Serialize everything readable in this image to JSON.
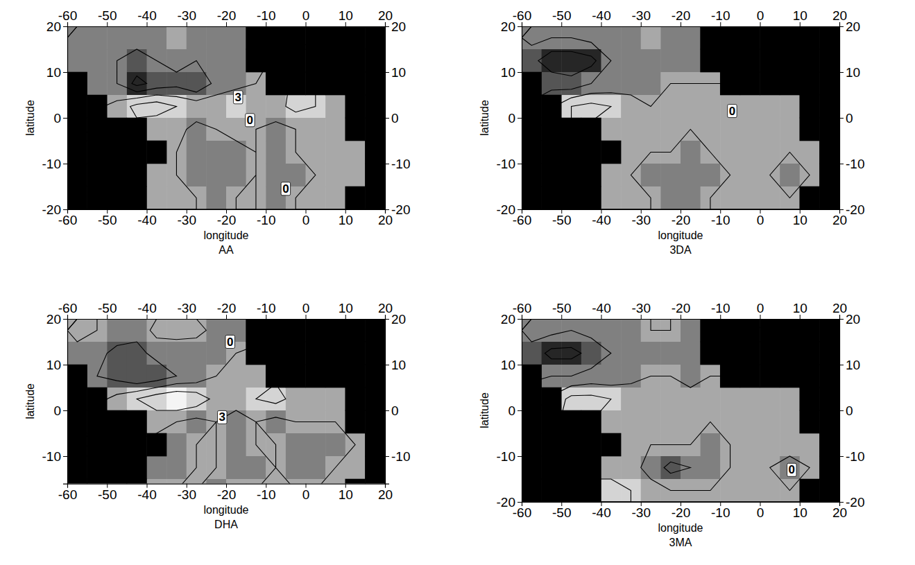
{
  "chart_data": [
    {
      "type": "contour",
      "title": "AA",
      "x_label": "longitude",
      "y_label": "latitude",
      "x": [
        -57.5,
        -52.5,
        -47.5,
        -42.5,
        -37.5,
        -32.5,
        -27.5,
        -22.5,
        -17.5,
        -12.5,
        -7.5,
        -2.5,
        2.5,
        7.5,
        12.5,
        17.5
      ],
      "y": [
        17.5,
        12.5,
        7.5,
        2.5,
        -2.5,
        -7.5,
        -12.5,
        -17.5
      ],
      "values": [
        [
          -1,
          -1,
          -2,
          -2,
          -1,
          0,
          -1,
          -2,
          -1,
          null,
          null,
          null,
          null,
          null,
          null,
          null
        ],
        [
          -1,
          -2,
          -3,
          -4,
          -3,
          -2,
          -3,
          -2,
          -1,
          null,
          null,
          null,
          null,
          null,
          null,
          null
        ],
        [
          null,
          -2,
          -3,
          -7,
          -5,
          -4,
          -6,
          -2,
          -1,
          0,
          null,
          null,
          null,
          null,
          null,
          null
        ],
        [
          null,
          null,
          1,
          4,
          5,
          3,
          2,
          2,
          3,
          1,
          2,
          4,
          3,
          1,
          null,
          null
        ],
        [
          null,
          null,
          null,
          null,
          0,
          1,
          -1,
          0,
          1,
          0,
          -1,
          0,
          1,
          0,
          null,
          null
        ],
        [
          null,
          null,
          null,
          null,
          null,
          0,
          -1,
          -2,
          -1,
          0,
          -1,
          0,
          1,
          0,
          1,
          null
        ],
        [
          null,
          null,
          null,
          null,
          1,
          0,
          -1,
          -1,
          -2,
          0,
          -1,
          -2,
          0,
          1,
          0,
          null
        ],
        [
          null,
          null,
          null,
          null,
          1,
          0,
          0,
          -1,
          0,
          0,
          -1,
          0,
          0,
          0,
          null,
          null
        ]
      ],
      "xlim": [
        -60,
        20
      ],
      "ylim": [
        -20,
        20
      ],
      "xticks": [
        -60,
        -50,
        -40,
        -30,
        -20,
        -10,
        0,
        10,
        20
      ],
      "yticks": [
        -20,
        -10,
        0,
        10,
        20
      ],
      "contour_levels": [
        -6,
        -3,
        0,
        3,
        6
      ],
      "annotations": [
        {
          "text": "3",
          "x": -17,
          "y": 4.5
        },
        {
          "text": "0",
          "x": -14,
          "y": -0.5
        },
        {
          "text": "0",
          "x": -5,
          "y": -15.5
        }
      ]
    },
    {
      "type": "contour",
      "title": "3DA",
      "x_label": "longitude",
      "y_label": "latitude",
      "x": [
        -57.5,
        -52.5,
        -47.5,
        -42.5,
        -37.5,
        -32.5,
        -27.5,
        -22.5,
        -17.5,
        -12.5,
        -7.5,
        -2.5,
        2.5,
        7.5,
        12.5,
        17.5
      ],
      "y": [
        17.5,
        12.5,
        7.5,
        2.5,
        -2.5,
        -7.5,
        -12.5,
        -17.5
      ],
      "values": [
        [
          -2,
          -3,
          -3,
          -2,
          -1,
          -1,
          0,
          -1,
          -1,
          null,
          null,
          null,
          null,
          null,
          null,
          null
        ],
        [
          -5,
          -8,
          -8,
          -7,
          -3,
          -2,
          -1,
          -2,
          -1,
          null,
          null,
          null,
          null,
          null,
          null,
          null
        ],
        [
          null,
          -4,
          -5,
          -3,
          -2,
          -1,
          -1,
          0,
          0,
          0,
          null,
          null,
          null,
          null,
          null,
          null
        ],
        [
          null,
          null,
          3,
          4,
          3,
          1,
          0,
          0,
          1,
          0,
          0,
          1,
          0,
          1,
          null,
          null
        ],
        [
          null,
          null,
          null,
          null,
          1,
          0,
          0,
          1,
          0,
          0,
          0,
          0,
          1,
          0,
          null,
          null
        ],
        [
          null,
          null,
          null,
          null,
          null,
          0,
          0,
          0,
          -1,
          0,
          0,
          0,
          0,
          0,
          1,
          null
        ],
        [
          null,
          null,
          null,
          null,
          0,
          0,
          -1,
          -2,
          -2,
          -1,
          0,
          0,
          0,
          -1,
          0,
          null
        ],
        [
          null,
          null,
          null,
          null,
          0,
          0,
          0,
          -1,
          -1,
          0,
          0,
          0,
          0,
          0,
          null,
          null
        ]
      ],
      "xlim": [
        -60,
        20
      ],
      "ylim": [
        -20,
        20
      ],
      "xticks": [
        -60,
        -50,
        -40,
        -30,
        -20,
        -10,
        0,
        10,
        20
      ],
      "yticks": [
        -20,
        -10,
        0,
        10,
        20
      ],
      "contour_levels": [
        -6,
        -3,
        0,
        3,
        6
      ],
      "annotations": [
        {
          "text": "0",
          "x": -7,
          "y": 1.5
        }
      ]
    },
    {
      "type": "contour",
      "title": "DHA",
      "x_label": "longitude",
      "y_label": "latitude",
      "x": [
        -57.5,
        -52.5,
        -47.5,
        -42.5,
        -37.5,
        -32.5,
        -27.5,
        -22.5,
        -17.5,
        -12.5,
        -7.5,
        -2.5,
        2.5,
        7.5,
        12.5,
        17.5
      ],
      "y": [
        17.5,
        12.5,
        7.5,
        2.5,
        -2.5,
        -7.5,
        -12.5,
        -17.5
      ],
      "values": [
        [
          1,
          0,
          -1,
          -2,
          1,
          2,
          1,
          -1,
          -1,
          null,
          null,
          null,
          null,
          null,
          null,
          null
        ],
        [
          -1,
          -2,
          -4,
          -4,
          -2,
          -3,
          -2,
          -1,
          0,
          null,
          null,
          null,
          null,
          null,
          null,
          null
        ],
        [
          null,
          -3,
          -4,
          -6,
          -5,
          -3,
          -2,
          0,
          0,
          1,
          null,
          null,
          null,
          null,
          null,
          null
        ],
        [
          null,
          null,
          1,
          3,
          5,
          6,
          5,
          2,
          1,
          3,
          4,
          2,
          1,
          0,
          null,
          null
        ],
        [
          null,
          null,
          null,
          null,
          1,
          0,
          -1,
          0,
          -1,
          0,
          -1,
          0,
          0,
          0,
          null,
          null
        ],
        [
          null,
          null,
          null,
          null,
          null,
          -1,
          0,
          0,
          -1,
          0,
          0,
          -1,
          -3,
          -1,
          0,
          null
        ],
        [
          null,
          null,
          null,
          null,
          -3,
          -1,
          0,
          0,
          -1,
          -1,
          0,
          -1,
          -2,
          0,
          0,
          null
        ],
        [
          null,
          null,
          null,
          null,
          0,
          0,
          0,
          -1,
          0,
          0,
          0,
          0,
          0,
          0,
          null,
          null
        ]
      ],
      "xlim": [
        -60,
        20
      ],
      "ylim": [
        -16,
        20
      ],
      "xticks": [
        -60,
        -50,
        -40,
        -30,
        -20,
        -10,
        0,
        10,
        20
      ],
      "yticks": [
        -10,
        0,
        10,
        20
      ],
      "contour_levels": [
        -6,
        -3,
        0,
        3,
        6
      ],
      "annotations": [
        {
          "text": "0",
          "x": -19,
          "y": 15
        },
        {
          "text": "3",
          "x": -21,
          "y": -1.5
        }
      ]
    },
    {
      "type": "contour",
      "title": "3MA",
      "x_label": "longitude",
      "y_label": "latitude",
      "x": [
        -57.5,
        -52.5,
        -47.5,
        -42.5,
        -37.5,
        -32.5,
        -27.5,
        -22.5,
        -17.5,
        -12.5,
        -7.5,
        -2.5,
        2.5,
        7.5,
        12.5,
        17.5
      ],
      "y": [
        17.5,
        12.5,
        7.5,
        2.5,
        -2.5,
        -7.5,
        -12.5,
        -17.5
      ],
      "values": [
        [
          -2,
          -2,
          -3,
          -2,
          -1,
          -1,
          0,
          0,
          -1,
          null,
          null,
          null,
          null,
          null,
          null,
          null
        ],
        [
          -4,
          -7,
          -7,
          -5,
          -3,
          -2,
          -1,
          -1,
          -1,
          null,
          null,
          null,
          null,
          null,
          null,
          null
        ],
        [
          null,
          -3,
          -3,
          -2,
          -2,
          -1,
          0,
          0,
          -1,
          0,
          null,
          null,
          null,
          null,
          null,
          null
        ],
        [
          null,
          null,
          4,
          4,
          3,
          2,
          2,
          1,
          1,
          0,
          0,
          0,
          1,
          0,
          null,
          null
        ],
        [
          null,
          null,
          null,
          null,
          2,
          1,
          1,
          0,
          0,
          0,
          0,
          0,
          0,
          1,
          null,
          null
        ],
        [
          null,
          null,
          null,
          null,
          null,
          0,
          0,
          0,
          0,
          -1,
          0,
          0,
          0,
          1,
          0,
          null
        ],
        [
          null,
          null,
          null,
          null,
          2,
          1,
          -1,
          -4,
          -3,
          -1,
          0,
          0,
          0,
          -1,
          0,
          null
        ],
        [
          null,
          null,
          null,
          null,
          4,
          3,
          1,
          0,
          0,
          0,
          0,
          0,
          0,
          0,
          null,
          null
        ]
      ],
      "xlim": [
        -60,
        20
      ],
      "ylim": [
        -20,
        20
      ],
      "xticks": [
        -60,
        -50,
        -40,
        -30,
        -20,
        -10,
        0,
        10,
        20
      ],
      "yticks": [
        -20,
        -10,
        0,
        10,
        20
      ],
      "contour_levels": [
        -6,
        -3,
        0,
        3,
        6
      ],
      "annotations": [
        {
          "text": "0",
          "x": 8,
          "y": -13
        }
      ]
    }
  ]
}
